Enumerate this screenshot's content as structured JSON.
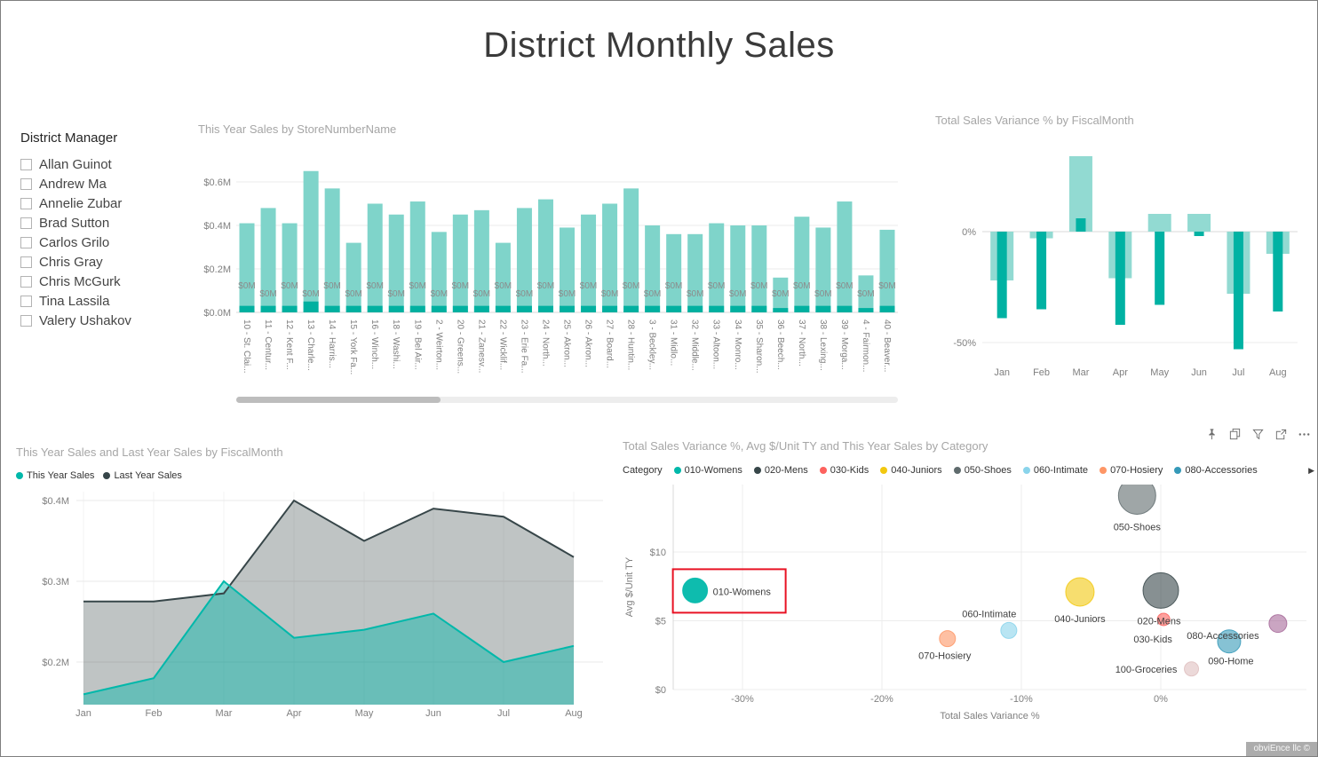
{
  "page": {
    "title": "District Monthly Sales",
    "watermark": "obviEnce llc ©",
    "accent_teal": "#01B8AA",
    "accent_dark": "#374649"
  },
  "slicer": {
    "title": "District Manager",
    "options": [
      "Allan Guinot",
      "Andrew Ma",
      "Annelie Zubar",
      "Brad Sutton",
      "Carlos Grilo",
      "Chris Gray",
      "Chris McGurk",
      "Tina Lassila",
      "Valery Ushakov"
    ],
    "all_checked": false
  },
  "visual_header": {
    "icons": [
      "pin",
      "copy",
      "filter",
      "focus-mode",
      "more-options"
    ]
  },
  "chart_data": [
    {
      "id": "store_sales",
      "type": "bar",
      "title": "This Year Sales by StoreNumberName",
      "categories": [
        "10 - St. Clai...",
        "11 - Centur...",
        "12 - Kent F...",
        "13 - Charle...",
        "14 - Harris...",
        "15 - York Fa...",
        "16 - Winch...",
        "18 - Washi...",
        "19 - Bel Air...",
        "2 - Weirton...",
        "20 - Greens...",
        "21 - Zanesv...",
        "22 - Wicklif...",
        "23 - Erie Fa...",
        "24 - North...",
        "25 - Akron...",
        "26 - Akron...",
        "27 - Board...",
        "28 - Huntin...",
        "3 - Beckley...",
        "31 - Midlo...",
        "32 - Middle...",
        "33 - Altoon...",
        "34 - Monro...",
        "35 - Sharon...",
        "36 - Beech...",
        "37 - North...",
        "38 - Lexing...",
        "39 - Morga...",
        "4 - Fairmon...",
        "40 - Beaver..."
      ],
      "series": [
        {
          "name": "This Year Sales",
          "color": "#7FD4CA",
          "values": [
            0.41,
            0.48,
            0.41,
            0.65,
            0.57,
            0.32,
            0.5,
            0.45,
            0.51,
            0.37,
            0.45,
            0.47,
            0.32,
            0.48,
            0.52,
            0.39,
            0.45,
            0.5,
            0.57,
            0.4,
            0.36,
            0.36,
            0.41,
            0.4,
            0.4,
            0.16,
            0.44,
            0.39,
            0.51,
            0.17,
            0.38
          ]
        },
        {
          "name": "This Year Sales (dark overlay)",
          "color": "#00B0A0",
          "values": [
            0.03,
            0.03,
            0.03,
            0.05,
            0.03,
            0.03,
            0.03,
            0.03,
            0.03,
            0.03,
            0.03,
            0.03,
            0.03,
            0.03,
            0.03,
            0.03,
            0.03,
            0.03,
            0.03,
            0.03,
            0.03,
            0.03,
            0.03,
            0.03,
            0.03,
            0.02,
            0.03,
            0.03,
            0.03,
            0.02,
            0.03
          ]
        }
      ],
      "bar_label": "$0M",
      "y_ticks": [
        {
          "label": "$0.0M",
          "value": 0
        },
        {
          "label": "$0.2M",
          "value": 0.2
        },
        {
          "label": "$0.4M",
          "value": 0.4
        },
        {
          "label": "$0.6M",
          "value": 0.6
        }
      ],
      "ylim": [
        0,
        0.68
      ],
      "units": "millions USD",
      "scrollbar": true
    },
    {
      "id": "variance_by_month",
      "type": "bar",
      "title": "Total Sales Variance % by FiscalMonth",
      "categories": [
        "Jan",
        "Feb",
        "Mar",
        "Apr",
        "May",
        "Jun",
        "Jul",
        "Aug"
      ],
      "series": [
        {
          "name": "Total Sales Variance % (wide light bars)",
          "color": "#92DAD2",
          "values": [
            -22,
            -3,
            34,
            -21,
            8,
            8,
            -28,
            -10
          ]
        },
        {
          "name": "Total Sales Variance % (narrow dark bars)",
          "color": "#00B2A3",
          "values": [
            -39,
            -35,
            6,
            -42,
            -33,
            -2,
            -53,
            -36
          ]
        }
      ],
      "y_ticks": [
        {
          "label": "0%",
          "value": 0
        },
        {
          "label": "-50%",
          "value": -50
        }
      ],
      "ylim": [
        -60,
        40
      ],
      "units": "percent"
    },
    {
      "id": "sales_by_fiscalmonth",
      "type": "area",
      "title": "This Year Sales and Last Year Sales by FiscalMonth",
      "categories": [
        "Jan",
        "Feb",
        "Mar",
        "Apr",
        "May",
        "Jun",
        "Jul",
        "Aug"
      ],
      "series": [
        {
          "name": "This Year Sales",
          "color": "#01B8AA",
          "values": [
            0.16,
            0.18,
            0.3,
            0.23,
            0.24,
            0.26,
            0.2,
            0.22
          ]
        },
        {
          "name": "Last Year Sales",
          "color": "#374649",
          "values": [
            0.275,
            0.275,
            0.285,
            0.4,
            0.35,
            0.39,
            0.38,
            0.33
          ]
        }
      ],
      "y_ticks": [
        {
          "label": "$0.2M",
          "value": 0.2
        },
        {
          "label": "$0.3M",
          "value": 0.3
        },
        {
          "label": "$0.4M",
          "value": 0.4
        }
      ],
      "ylim": [
        0.15,
        0.42
      ],
      "legend_position": "top-left",
      "units": "millions USD"
    },
    {
      "id": "category_scatter",
      "type": "scatter",
      "title": "Total Sales Variance %, Avg $/Unit TY and This Year Sales by Category",
      "legend_title": "Category",
      "legend_items": [
        {
          "name": "010-Womens",
          "color": "#01B8AA"
        },
        {
          "name": "020-Mens",
          "color": "#374649"
        },
        {
          "name": "030-Kids",
          "color": "#FD625E"
        },
        {
          "name": "040-Juniors",
          "color": "#F2C80F"
        },
        {
          "name": "050-Shoes",
          "color": "#5F6B6D"
        },
        {
          "name": "060-Intimate",
          "color": "#8AD4EB"
        },
        {
          "name": "070-Hosiery",
          "color": "#FE9666"
        },
        {
          "name": "080-Accessories",
          "color": "#3599B8"
        }
      ],
      "legend_overflow_arrow": "▶",
      "xlabel": "Total Sales Variance %",
      "ylabel": "Avg $/Unit TY",
      "x_ticks": [
        {
          "label": "-30%",
          "value": -30
        },
        {
          "label": "-20%",
          "value": -20
        },
        {
          "label": "-10%",
          "value": -10
        },
        {
          "label": "0%",
          "value": 0
        }
      ],
      "y_ticks": [
        {
          "label": "$0",
          "value": 0
        },
        {
          "label": "$5",
          "value": 5
        },
        {
          "label": "$10",
          "value": 10
        }
      ],
      "xlim": [
        -35,
        10.5
      ],
      "ylim": [
        0,
        14.9
      ],
      "points": [
        {
          "label": "010-Womens",
          "x": -33.4,
          "y": 7.2,
          "r": 14,
          "color": "#01B8AA",
          "highlighted": true,
          "anchor": "start",
          "label_offset": [
            20,
            5
          ]
        },
        {
          "label": "020-Mens",
          "x": 0,
          "y": 7.2,
          "r": 20,
          "color": "#374649",
          "label_offset": [
            -2,
            38
          ]
        },
        {
          "label": "030-Kids",
          "x": 0.2,
          "y": 5.1,
          "r": 7,
          "color": "#FD625E",
          "label_offset": [
            -12,
            26
          ]
        },
        {
          "label": "040-Juniors",
          "x": -5.8,
          "y": 7.1,
          "r": 16,
          "color": "#F2C80F",
          "label_offset": [
            0,
            34
          ]
        },
        {
          "label": "050-Shoes",
          "x": -1.7,
          "y": 14.1,
          "r": 21,
          "color": "#5F6B6D",
          "label_offset": [
            0,
            39
          ]
        },
        {
          "label": "060-Intimate",
          "x": -10.9,
          "y": 4.3,
          "r": 9,
          "color": "#8AD4EB",
          "label_offset": [
            -22,
            -15
          ]
        },
        {
          "label": "070-Hosiery",
          "x": -15.3,
          "y": 3.7,
          "r": 9,
          "color": "#FE9666",
          "label_offset": [
            -3,
            23
          ]
        },
        {
          "label": "080-Accessories",
          "x": 4.9,
          "y": 3.5,
          "r": 13,
          "color": "#3599B8",
          "label_offset": [
            -7,
            -3
          ]
        },
        {
          "label": "090-Home",
          "x": 8.4,
          "y": 4.8,
          "r": 10,
          "color": "#A66999",
          "label_offset": [
            -53,
            46
          ]
        },
        {
          "label": "100-Groceries",
          "x": 2.2,
          "y": 1.5,
          "r": 8,
          "color": "#DFBFBF",
          "label_offset": [
            -51,
            4
          ]
        }
      ],
      "annotation": {
        "shape": "rectangle",
        "color": "#E81123",
        "around_point": "010-Womens"
      }
    }
  ]
}
